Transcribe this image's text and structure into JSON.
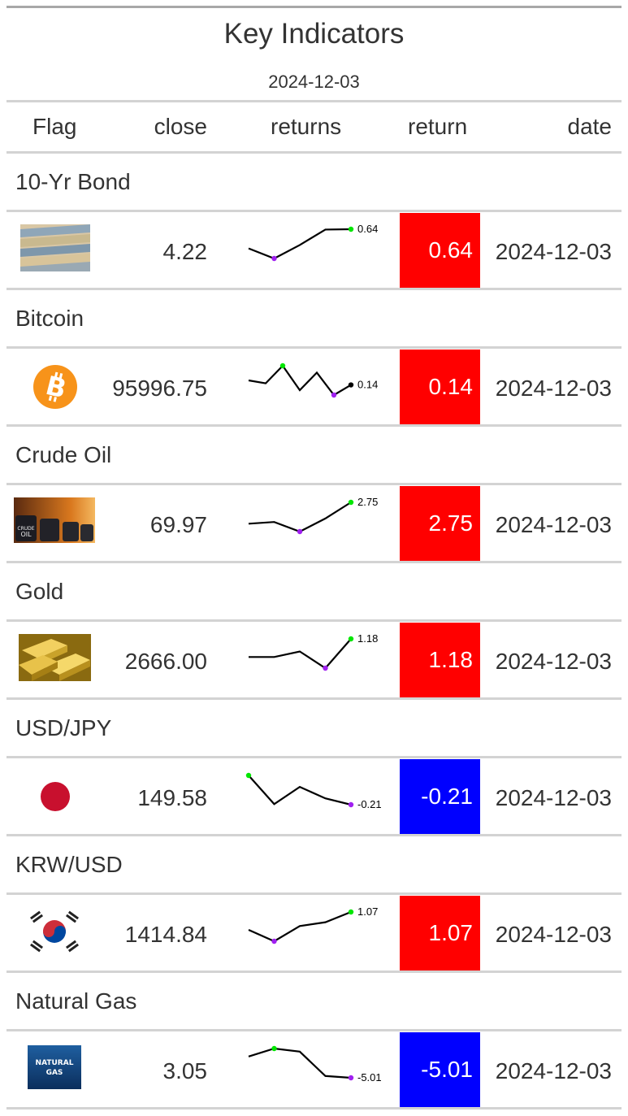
{
  "title": "Key Indicators",
  "subtitle": "2024-12-03",
  "columns": {
    "flag": "Flag",
    "close": "close",
    "returns": "returns",
    "return": "return",
    "date": "date"
  },
  "colors": {
    "positive": "#ff0000",
    "negative": "#0000ff",
    "spark_line": "#000000",
    "spark_max": "#00e600",
    "spark_min": "#a020f0"
  },
  "rows": [
    {
      "group": "10-Yr Bond",
      "flag_icon": "bond-certificates-image",
      "close": "4.22",
      "spark": [
        -0.5,
        -1.1,
        -0.3,
        0.62,
        0.64
      ],
      "spark_label": "0.64",
      "return": "0.64",
      "return_sign": "positive",
      "date": "2024-12-03"
    },
    {
      "group": "Bitcoin",
      "flag_icon": "bitcoin-logo",
      "close": "95996.75",
      "spark": [
        0.6,
        0.3,
        2.1,
        -0.4,
        1.4,
        -0.9,
        0.14
      ],
      "spark_label": "0.14",
      "return": "0.14",
      "return_sign": "positive",
      "date": "2024-12-03"
    },
    {
      "group": "Crude Oil",
      "flag_icon": "crude-oil-barrels-image",
      "close": "69.97",
      "spark": [
        0.3,
        0.5,
        -0.6,
        0.9,
        2.75
      ],
      "spark_label": "2.75",
      "return": "2.75",
      "return_sign": "positive",
      "date": "2024-12-03"
    },
    {
      "group": "Gold",
      "flag_icon": "gold-bars-image",
      "close": "2666.00",
      "spark": [
        0.2,
        0.2,
        0.5,
        -0.4,
        1.18
      ],
      "spark_label": "1.18",
      "return": "1.18",
      "return_sign": "positive",
      "date": "2024-12-03"
    },
    {
      "group": "USD/JPY",
      "flag_icon": "japan-flag",
      "close": "149.58",
      "spark": [
        0.3,
        -0.2,
        0.1,
        -0.1,
        -0.21
      ],
      "spark_label": "-0.21",
      "return": "-0.21",
      "return_sign": "negative",
      "date": "2024-12-03"
    },
    {
      "group": "KRW/USD",
      "flag_icon": "south-korea-flag",
      "close": "1414.84",
      "spark": [
        0.6,
        0.3,
        0.7,
        0.8,
        1.07
      ],
      "spark_label": "1.07",
      "return": "1.07",
      "return_sign": "positive",
      "date": "2024-12-03"
    },
    {
      "group": "Natural Gas",
      "flag_icon": "natural-gas-image",
      "flag_text": [
        "NATURAL",
        "GAS"
      ],
      "close": "3.05",
      "spark": [
        -0.2,
        1.6,
        0.9,
        -4.6,
        -5.01
      ],
      "spark_label": "-5.01",
      "return": "-5.01",
      "return_sign": "negative",
      "date": "2024-12-03"
    }
  ]
}
